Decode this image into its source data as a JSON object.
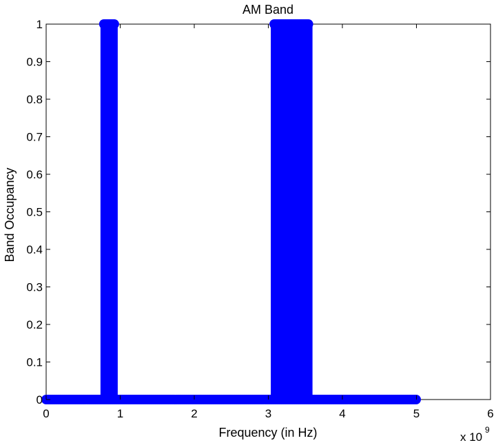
{
  "chart_data": {
    "type": "scatter",
    "title": "AM Band",
    "xlabel": "Frequency (in Hz)",
    "ylabel": "Band  Occupancy",
    "x_scale_label": "x 10",
    "x_scale_exponent": "9",
    "xlim": [
      0,
      6
    ],
    "ylim": [
      0,
      1
    ],
    "x_ticks": [
      "0",
      "1",
      "2",
      "3",
      "4",
      "5",
      "6"
    ],
    "y_ticks": [
      "0",
      "0.1",
      "0.2",
      "0.3",
      "0.4",
      "0.5",
      "0.6",
      "0.7",
      "0.8",
      "0.9",
      "1"
    ],
    "marker": "circle",
    "color": "#0000ff",
    "grid": false,
    "legend": "none",
    "series": [
      {
        "points_zero": {
          "x_start": 0,
          "x_end": 5.0,
          "y": 0
        },
        "occupied_bands": [
          {
            "x_start": 0.78,
            "x_end": 0.92,
            "y": 1
          },
          {
            "x_start": 3.08,
            "x_end": 3.55,
            "y": 1
          }
        ]
      }
    ]
  }
}
